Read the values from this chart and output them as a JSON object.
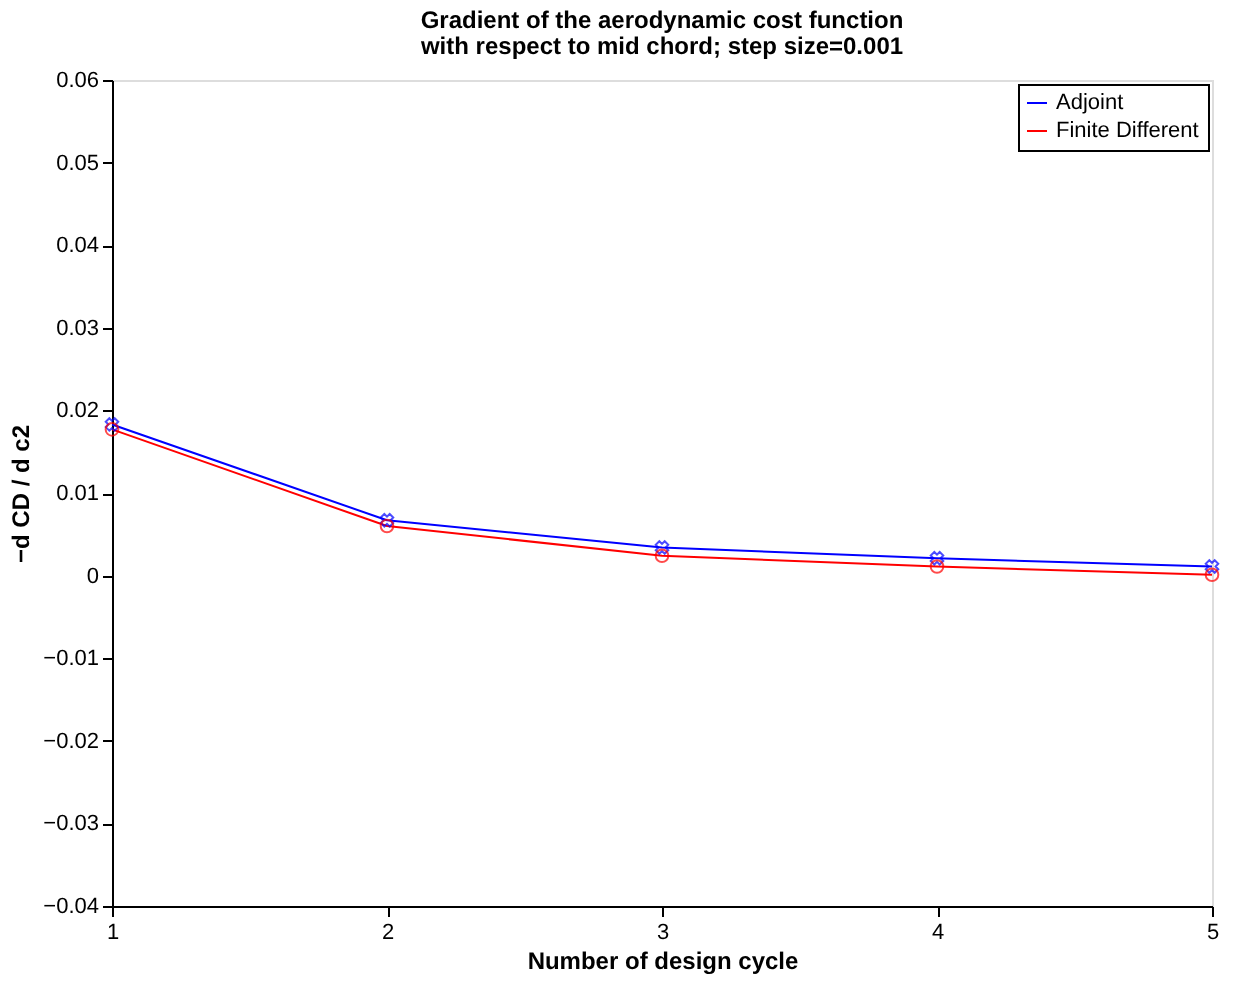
{
  "chart_data": {
    "type": "line",
    "title": "Gradient of the aerodynamic cost function",
    "subtitle": "with respect to mid chord; step size=0.001",
    "xlabel": "Number of design cycle",
    "ylabel": "−d CD / d c2",
    "x": [
      1,
      2,
      3,
      4,
      5
    ],
    "xlim": [
      1,
      5
    ],
    "xticks": [
      1,
      2,
      3,
      4,
      5
    ],
    "ylim": [
      -0.04,
      0.06
    ],
    "yticks": [
      {
        "value": -0.04,
        "label": "−0.04"
      },
      {
        "value": -0.03,
        "label": "−0.03"
      },
      {
        "value": -0.02,
        "label": "−0.02"
      },
      {
        "value": -0.01,
        "label": "−0.01"
      },
      0,
      0.01,
      0.02,
      0.03,
      0.04,
      0.05,
      0.06
    ],
    "series": [
      {
        "name": "Adjoint",
        "color": "#0000ff",
        "marker": "cross",
        "values": [
          0.0183,
          0.0067,
          0.0034,
          0.0021,
          0.0011
        ]
      },
      {
        "name": "Finite Different",
        "color": "#ff0000",
        "marker": "circle",
        "values": [
          0.0177,
          0.006,
          0.0024,
          0.0011,
          0.0001
        ]
      }
    ],
    "legend": "top right",
    "grid": false
  }
}
